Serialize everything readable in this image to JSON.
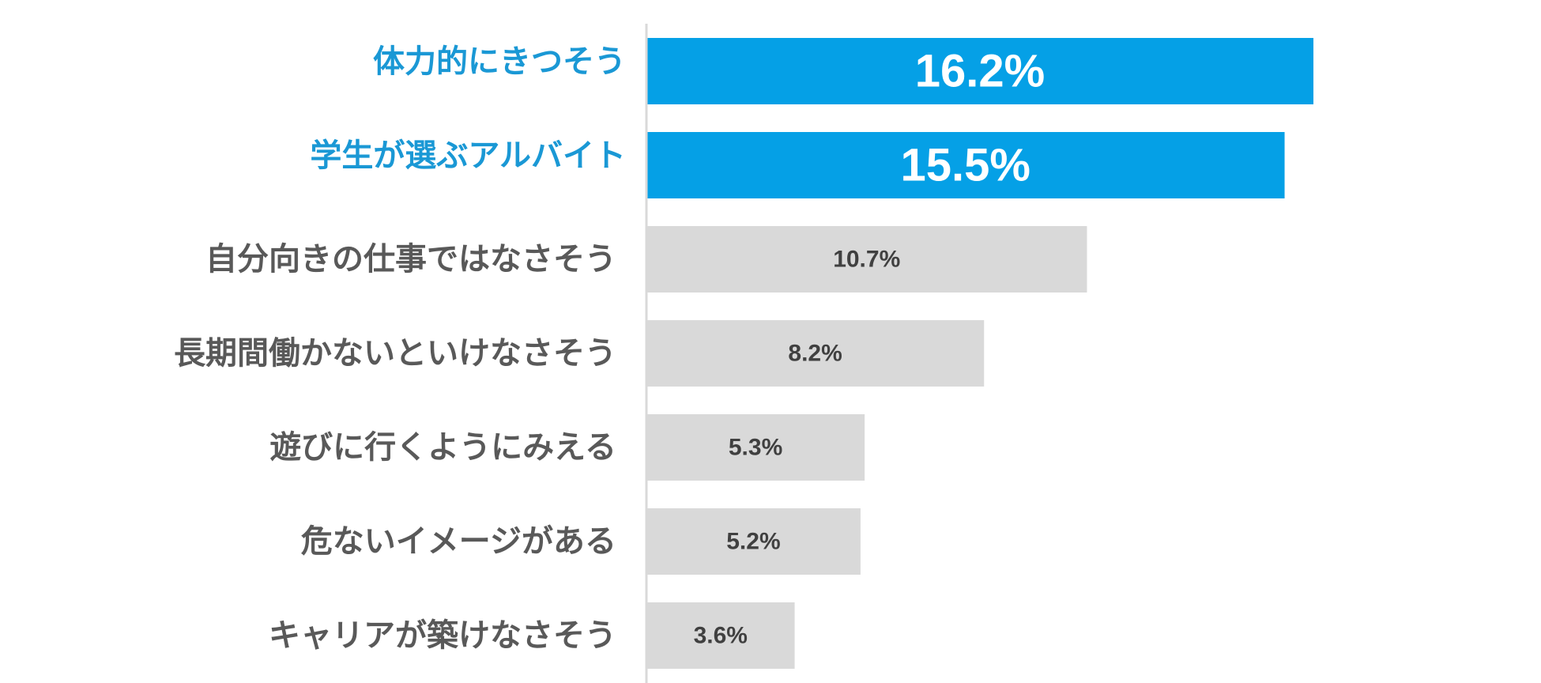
{
  "chart_data": {
    "type": "bar",
    "orientation": "horizontal",
    "title": "",
    "xlabel": "",
    "ylabel": "",
    "grid": false,
    "xlim": [
      0,
      18
    ],
    "categories": [
      "体力的にきつそう",
      "学生が選ぶアルバイト",
      "自分向きの仕事ではなさそう",
      "長期間働かないといけなさそう",
      "遊びに行くようにみえる",
      "危ないイメージがある",
      "キャリアが築けなさそう"
    ],
    "values": [
      16.2,
      15.5,
      10.7,
      8.2,
      5.3,
      5.2,
      3.6
    ],
    "value_labels": [
      "16.2%",
      "15.5%",
      "10.7%",
      "8.2%",
      "5.3%",
      "5.2%",
      "3.6%"
    ],
    "highlighted": [
      true,
      true,
      false,
      false,
      false,
      false,
      false
    ],
    "colors": {
      "highlight_bar": "#05A0E6",
      "highlight_text": "#1A98D5",
      "highlight_value": "#FFFFFF",
      "default_bar": "#D9D9D9",
      "default_text": "#595959",
      "default_value": "#404040",
      "axis": "#D9D9D9"
    }
  }
}
